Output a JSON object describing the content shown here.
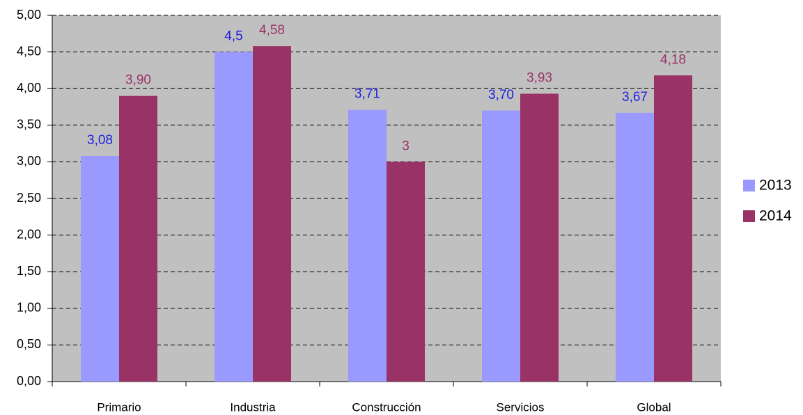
{
  "chart_data": {
    "type": "bar",
    "categories": [
      "Primario",
      "Industria",
      "Construcción",
      "Servicios",
      "Global"
    ],
    "series": [
      {
        "name": "2013",
        "color": "#9999ff",
        "label_color": "#2020e0",
        "values": [
          3.08,
          4.5,
          3.71,
          3.7,
          3.67
        ],
        "value_labels": [
          "3,08",
          "4,5",
          "3,71",
          "3,70",
          "3,67"
        ]
      },
      {
        "name": "2014",
        "color": "#993366",
        "label_color": "#993366",
        "values": [
          3.9,
          4.58,
          3,
          3.93,
          4.18
        ],
        "value_labels": [
          "3,90",
          "4,58",
          "3",
          "3,93",
          "4,18"
        ]
      }
    ],
    "ylim": [
      0,
      5
    ],
    "yticks": [
      {
        "value": 0,
        "label": "0,00"
      },
      {
        "value": 0.5,
        "label": "0,50"
      },
      {
        "value": 1,
        "label": "1,00"
      },
      {
        "value": 1.5,
        "label": "1,50"
      },
      {
        "value": 2,
        "label": "2,00"
      },
      {
        "value": 2.5,
        "label": "2,50"
      },
      {
        "value": 3,
        "label": "3,00"
      },
      {
        "value": 3.5,
        "label": "3,50"
      },
      {
        "value": 4,
        "label": "4,00"
      },
      {
        "value": 4.5,
        "label": "4,50"
      },
      {
        "value": 5,
        "label": "5,00"
      }
    ],
    "grid": true,
    "legend": "right",
    "plot_background": "#c0c0c0"
  }
}
